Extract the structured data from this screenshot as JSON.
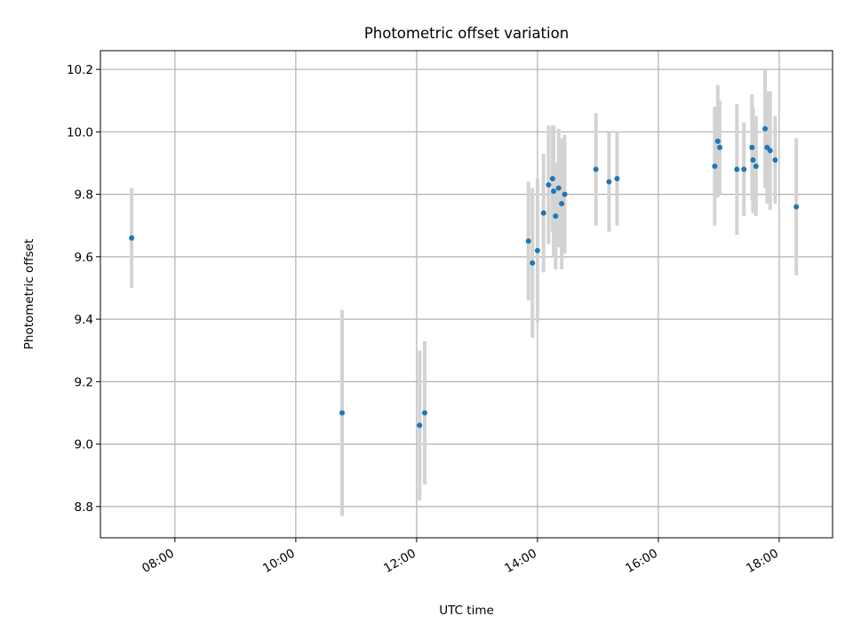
{
  "chart_data": {
    "type": "scatter",
    "title": "Photometric offset variation",
    "xlabel": "UTC time",
    "ylabel": "Photometric offset",
    "grid": true,
    "x_ticks": [
      "08:00",
      "10:00",
      "12:00",
      "14:00",
      "16:00",
      "18:00"
    ],
    "y_ticks": [
      "8.8",
      "9.0",
      "9.2",
      "9.4",
      "9.6",
      "9.8",
      "10.0",
      "10.2"
    ],
    "xlim": [
      "06:46",
      "18:53"
    ],
    "ylim": [
      8.7,
      10.26
    ],
    "colors": {
      "marker": "#1f77b4",
      "errorbar": "#d3d3d3",
      "grid": "#b0b0b0"
    },
    "points": [
      {
        "x": "07:17",
        "y": 9.66,
        "yerr": 0.16
      },
      {
        "x": "10:46",
        "y": 9.1,
        "yerr": 0.33
      },
      {
        "x": "12:03",
        "y": 9.06,
        "yerr": 0.24
      },
      {
        "x": "12:08",
        "y": 9.1,
        "yerr": 0.23
      },
      {
        "x": "13:51",
        "y": 9.65,
        "yerr": 0.19
      },
      {
        "x": "13:55",
        "y": 9.58,
        "yerr": 0.24
      },
      {
        "x": "14:00",
        "y": 9.62,
        "yerr": 0.23
      },
      {
        "x": "14:06",
        "y": 9.74,
        "yerr": 0.19
      },
      {
        "x": "14:11",
        "y": 9.83,
        "yerr": 0.19
      },
      {
        "x": "14:15",
        "y": 9.85,
        "yerr": 0.17
      },
      {
        "x": "14:16",
        "y": 9.81,
        "yerr": 0.21
      },
      {
        "x": "14:18",
        "y": 9.73,
        "yerr": 0.17
      },
      {
        "x": "14:21",
        "y": 9.82,
        "yerr": 0.19
      },
      {
        "x": "14:24",
        "y": 9.77,
        "yerr": 0.21
      },
      {
        "x": "14:27",
        "y": 9.8,
        "yerr": 0.19
      },
      {
        "x": "14:58",
        "y": 9.88,
        "yerr": 0.18
      },
      {
        "x": "15:11",
        "y": 9.84,
        "yerr": 0.16
      },
      {
        "x": "15:19",
        "y": 9.85,
        "yerr": 0.15
      },
      {
        "x": "16:56",
        "y": 9.89,
        "yerr": 0.19
      },
      {
        "x": "16:59",
        "y": 9.97,
        "yerr": 0.18
      },
      {
        "x": "17:01",
        "y": 9.95,
        "yerr": 0.15
      },
      {
        "x": "17:18",
        "y": 9.88,
        "yerr": 0.21
      },
      {
        "x": "17:25",
        "y": 9.88,
        "yerr": 0.15
      },
      {
        "x": "17:33",
        "y": 9.95,
        "yerr": 0.17
      },
      {
        "x": "17:34",
        "y": 9.91,
        "yerr": 0.17
      },
      {
        "x": "17:37",
        "y": 9.89,
        "yerr": 0.16
      },
      {
        "x": "17:46",
        "y": 10.01,
        "yerr": 0.19
      },
      {
        "x": "17:48",
        "y": 9.95,
        "yerr": 0.18
      },
      {
        "x": "17:51",
        "y": 9.94,
        "yerr": 0.19
      },
      {
        "x": "17:56",
        "y": 9.91,
        "yerr": 0.14
      },
      {
        "x": "18:17",
        "y": 9.76,
        "yerr": 0.22
      }
    ]
  }
}
